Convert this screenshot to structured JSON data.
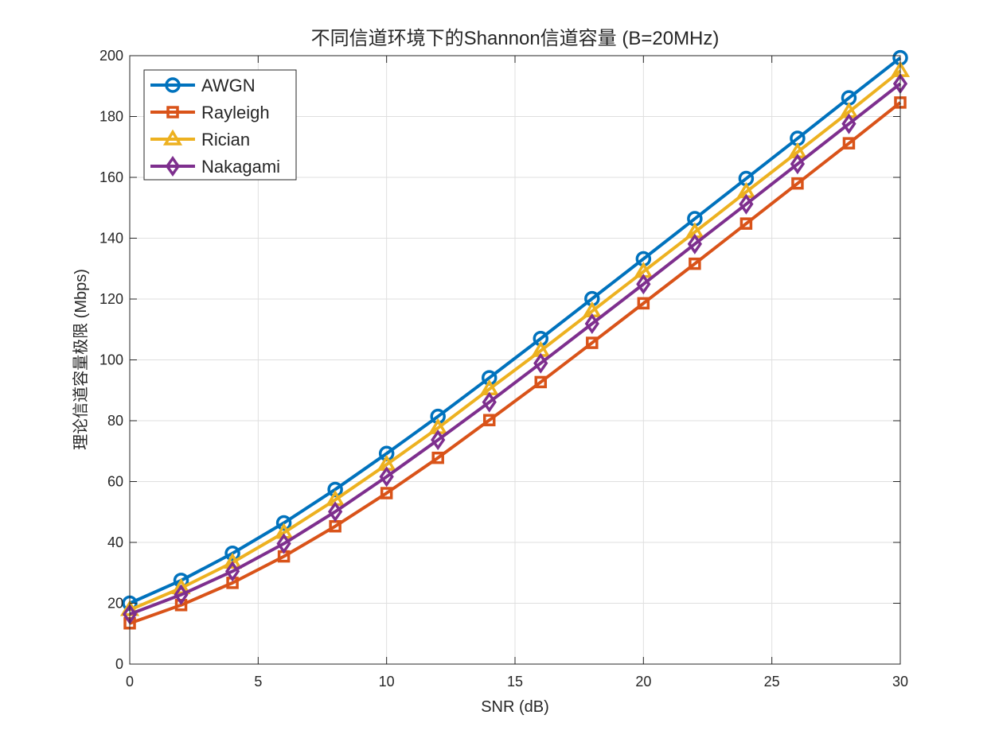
{
  "chart_data": {
    "type": "line",
    "title": "不同信道环境下的Shannon信道容量 (B=20MHz)",
    "xlabel": "SNR (dB)",
    "ylabel": "理论信道容量极限 (Mbps)",
    "xlim": [
      0,
      30
    ],
    "ylim": [
      0,
      200
    ],
    "xticks": [
      0,
      5,
      10,
      15,
      20,
      25,
      30
    ],
    "yticks": [
      0,
      20,
      40,
      60,
      80,
      100,
      120,
      140,
      160,
      180,
      200
    ],
    "grid": true,
    "legend_position": "top-left",
    "x": [
      0,
      2,
      4,
      6,
      8,
      10,
      12,
      14,
      16,
      18,
      20,
      22,
      24,
      26,
      28,
      30
    ],
    "series": [
      {
        "name": "AWGN",
        "color": "#0072BD",
        "marker": "circle",
        "values": [
          20.0,
          27.5,
          36.4,
          46.4,
          57.4,
          69.2,
          81.4,
          94.1,
          107.0,
          120.1,
          133.2,
          146.4,
          159.6,
          172.8,
          186.1,
          199.3
        ]
      },
      {
        "name": "Rayleigh",
        "color": "#D95319",
        "marker": "square",
        "values": [
          13.4,
          19.4,
          26.7,
          35.4,
          45.3,
          56.2,
          67.8,
          80.2,
          92.7,
          105.6,
          118.6,
          131.6,
          144.8,
          158.0,
          171.2,
          184.6
        ]
      },
      {
        "name": "Rician",
        "color": "#EDB120",
        "marker": "triangle",
        "values": [
          17.8,
          25.0,
          33.4,
          43.2,
          54.0,
          65.6,
          77.6,
          90.4,
          103.0,
          116.0,
          129.0,
          142.0,
          155.2,
          168.3,
          181.5,
          195.0
        ]
      },
      {
        "name": "Nakagami",
        "color": "#7E2F8E",
        "marker": "diamond",
        "values": [
          16.4,
          22.8,
          30.5,
          39.6,
          50.1,
          61.6,
          73.7,
          86.1,
          98.9,
          111.9,
          124.9,
          138.1,
          151.2,
          164.4,
          177.6,
          190.8
        ]
      }
    ]
  }
}
